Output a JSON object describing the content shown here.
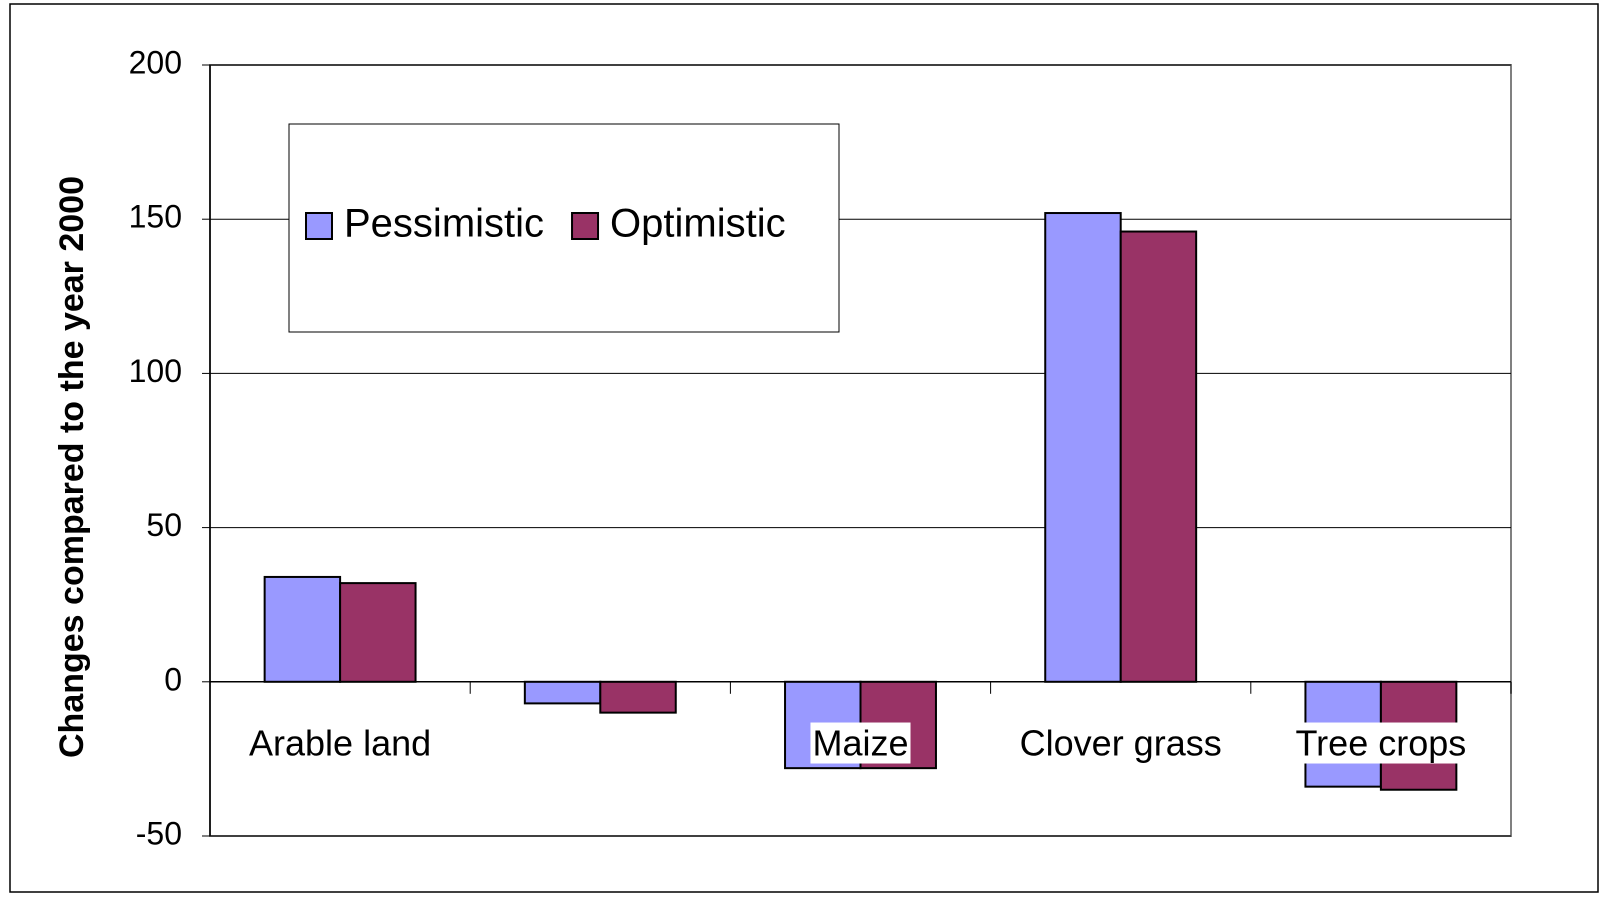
{
  "chart_data": {
    "type": "bar",
    "categories": [
      "Arable land",
      null,
      "Maize",
      "Clover grass",
      "Tree crops"
    ],
    "series": [
      {
        "name": "Pessimistic",
        "color": "#9999ff",
        "values": [
          34,
          -7,
          -28,
          152,
          -34
        ]
      },
      {
        "name": "Optimistic",
        "color": "#993366",
        "values": [
          32,
          -10,
          -28,
          146,
          -35
        ]
      }
    ],
    "ylabel": "Changes compared to the year 2000",
    "ylim": [
      -50,
      200
    ],
    "yticks": [
      -50,
      0,
      50,
      100,
      150,
      200
    ],
    "grid": true
  }
}
